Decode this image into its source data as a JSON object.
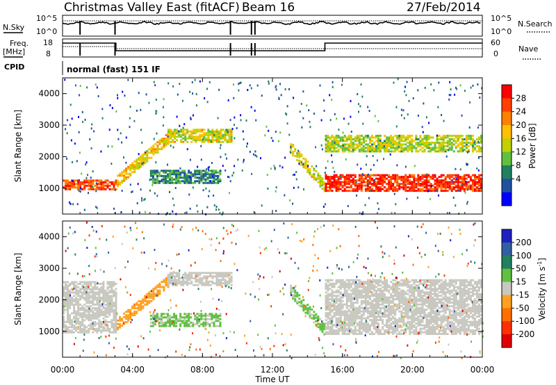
{
  "header": {
    "radar": "Christmas Valley East (fitACF)",
    "beam": "Beam 16",
    "date": "27/Feb/2014",
    "mode": "normal (fast) 151 IF"
  },
  "params": {
    "nsky_label": "N.Sky",
    "nsky_ticks": [
      "10^5",
      "10^0"
    ],
    "nsearch_label": "N.Search",
    "nsearch_ticks": [
      "10^5",
      "10^0"
    ],
    "freq_label": "Freq.",
    "freq_unit": "[MHz]",
    "freq_ticks": [
      "18",
      "8"
    ],
    "nave_label": "Nave",
    "nave_ticks": [
      "60",
      "0"
    ],
    "cpid_label": "CPID"
  },
  "axes": {
    "xlabel": "Time UT",
    "x_ticks": [
      "00:00",
      "04:00",
      "08:00",
      "12:00",
      "16:00",
      "20:00",
      "00:00"
    ],
    "ylabel": "Slant Range [km]",
    "y_ticks": [
      "1000",
      "2000",
      "3000",
      "4000"
    ]
  },
  "colorbars": {
    "power": {
      "label": "Power [dB]",
      "ticks": [
        "28",
        "24",
        "20",
        "16",
        "12",
        "8",
        "4"
      ],
      "colors": [
        "#ff0000",
        "#ff4000",
        "#ff8000",
        "#ffc000",
        "#c0d000",
        "#60c040",
        "#208060",
        "#2050a0",
        "#0000ff"
      ]
    },
    "velocity": {
      "label": "Velocity [m s",
      "label_sup": "-1",
      "label_end": "]",
      "ticks": [
        "200",
        "100",
        "50",
        "15",
        "-15",
        "-50",
        "-100",
        "-200"
      ],
      "colors": [
        "#2020c0",
        "#3060a0",
        "#208060",
        "#60c040",
        "#c8c8c0",
        "#ffa020",
        "#ff7000",
        "#ff3000",
        "#e00000"
      ]
    }
  },
  "chart_data": [
    {
      "type": "heatmap",
      "title": "Power",
      "x_range_hours": [
        0,
        24
      ],
      "ylim_km": [
        180,
        4500
      ],
      "xlabel": "Time UT",
      "ylabel": "Slant Range [km]",
      "colorbar_range_db": [
        0,
        30
      ],
      "features": [
        {
          "desc": "strong near-range band",
          "t_start": 0.0,
          "t_end": 3.1,
          "range_km": [
            1000,
            1300
          ],
          "power_db": 26
        },
        {
          "desc": "rising arc",
          "t_start": 3.1,
          "t_end": 6.0,
          "range_km": [
            1100,
            2600
          ],
          "power_db": 18
        },
        {
          "desc": "arc plateau",
          "t_start": 6.0,
          "t_end": 9.6,
          "range_km": [
            2500,
            2900
          ],
          "power_db": 16
        },
        {
          "desc": "mid-range patch",
          "t_start": 5.0,
          "t_end": 9.0,
          "range_km": [
            1200,
            1600
          ],
          "power_db": 8
        },
        {
          "desc": "descending band",
          "t_start": 13.0,
          "t_end": 15.0,
          "range_km": [
            1100,
            2500
          ],
          "power_db": 16
        },
        {
          "desc": "strong near-range band",
          "t_start": 15.0,
          "t_end": 24.0,
          "range_km": [
            950,
            1500
          ],
          "power_db": 28
        },
        {
          "desc": "upper band",
          "t_start": 15.0,
          "t_end": 24.0,
          "range_km": [
            2200,
            2700
          ],
          "power_db": 14
        }
      ]
    },
    {
      "type": "heatmap",
      "title": "Velocity",
      "x_range_hours": [
        0,
        24
      ],
      "ylim_km": [
        180,
        4500
      ],
      "xlabel": "Time UT",
      "ylabel": "Slant Range [km]",
      "colorbar_range_ms": [
        -250,
        250
      ],
      "features": [
        {
          "desc": "ground scatter band",
          "t_start": 0.0,
          "t_end": 3.1,
          "range_km": [
            1000,
            2600
          ],
          "velocity_ms": 0
        },
        {
          "desc": "rising arc",
          "t_start": 3.1,
          "t_end": 6.0,
          "range_km": [
            1100,
            2600
          ],
          "velocity_ms": -60
        },
        {
          "desc": "arc plateau",
          "t_start": 6.0,
          "t_end": 9.6,
          "range_km": [
            2500,
            2900
          ],
          "velocity_ms": 0
        },
        {
          "desc": "mid-range patch",
          "t_start": 5.0,
          "t_end": 9.0,
          "range_km": [
            1200,
            1600
          ],
          "velocity_ms": 40
        },
        {
          "desc": "descending band",
          "t_start": 13.0,
          "t_end": 15.0,
          "range_km": [
            1100,
            2500
          ],
          "velocity_ms": 40
        },
        {
          "desc": "ground scatter band",
          "t_start": 15.0,
          "t_end": 24.0,
          "range_km": [
            950,
            2700
          ],
          "velocity_ms": 0
        }
      ]
    }
  ]
}
